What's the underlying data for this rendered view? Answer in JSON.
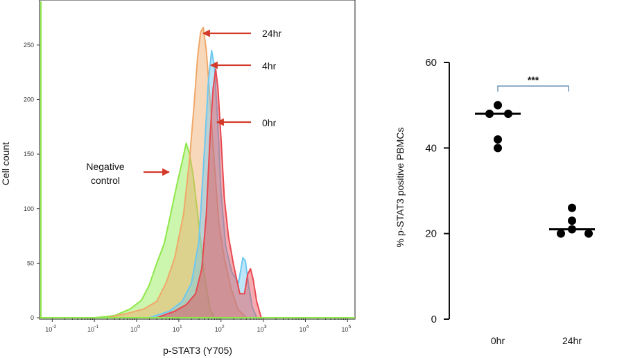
{
  "chart_data": [
    {
      "type": "area",
      "xlabel": "p-STAT3 (Y705)",
      "ylabel": "Cell count",
      "xscale": "log",
      "xlim": [
        0.005,
        150000
      ],
      "ylim": [
        0,
        290
      ],
      "x_ticks": [
        {
          "base": "10",
          "exp": "-2",
          "value": 0.01
        },
        {
          "base": "10",
          "exp": "-1",
          "value": 0.1
        },
        {
          "base": "10",
          "exp": "0",
          "value": 1
        },
        {
          "base": "10",
          "exp": "1",
          "value": 10
        },
        {
          "base": "10",
          "exp": "2",
          "value": 100
        },
        {
          "base": "10",
          "exp": "3",
          "value": 1000
        },
        {
          "base": "10",
          "exp": "4",
          "value": 10000
        },
        {
          "base": "10",
          "exp": "5",
          "value": 100000
        }
      ],
      "y_ticks": [
        "0",
        "50",
        "100",
        "150",
        "200",
        "250"
      ],
      "series": [
        {
          "name": "Negative control",
          "color": "#8ee84a",
          "points": [
            [
              0.1,
              0
            ],
            [
              0.3,
              2
            ],
            [
              0.7,
              8
            ],
            [
              1.3,
              16
            ],
            [
              2,
              30
            ],
            [
              3,
              50
            ],
            [
              4.5,
              68
            ],
            [
              6,
              90
            ],
            [
              9,
              122
            ],
            [
              12,
              143
            ],
            [
              15,
              160
            ],
            [
              18,
              150
            ],
            [
              22,
              130
            ],
            [
              30,
              85
            ],
            [
              40,
              40
            ],
            [
              55,
              8
            ],
            [
              70,
              0
            ]
          ]
        },
        {
          "name": "24hr",
          "color": "#f0a868",
          "points": [
            [
              0.2,
              0
            ],
            [
              0.6,
              4
            ],
            [
              1.5,
              8
            ],
            [
              3,
              15
            ],
            [
              5,
              32
            ],
            [
              8,
              55
            ],
            [
              13,
              95
            ],
            [
              18,
              145
            ],
            [
              23,
              195
            ],
            [
              28,
              240
            ],
            [
              33,
              262
            ],
            [
              38,
              266
            ],
            [
              45,
              245
            ],
            [
              55,
              200
            ],
            [
              70,
              140
            ],
            [
              90,
              85
            ],
            [
              120,
              55
            ],
            [
              170,
              28
            ],
            [
              250,
              8
            ],
            [
              400,
              0
            ]
          ]
        },
        {
          "name": "4hr",
          "color": "#6ec8f0",
          "points": [
            [
              2,
              0
            ],
            [
              6,
              6
            ],
            [
              12,
              15
            ],
            [
              20,
              32
            ],
            [
              30,
              70
            ],
            [
              40,
              150
            ],
            [
              50,
              215
            ],
            [
              60,
              245
            ],
            [
              70,
              230
            ],
            [
              85,
              175
            ],
            [
              100,
              115
            ],
            [
              130,
              65
            ],
            [
              180,
              42
            ],
            [
              260,
              32
            ],
            [
              330,
              55
            ],
            [
              380,
              52
            ],
            [
              450,
              30
            ],
            [
              550,
              10
            ],
            [
              700,
              0
            ]
          ]
        },
        {
          "name": "0hr",
          "color": "#e84850",
          "points": [
            [
              3,
              0
            ],
            [
              8,
              6
            ],
            [
              15,
              12
            ],
            [
              25,
              22
            ],
            [
              35,
              45
            ],
            [
              45,
              95
            ],
            [
              55,
              165
            ],
            [
              65,
              210
            ],
            [
              75,
              228
            ],
            [
              85,
              210
            ],
            [
              100,
              165
            ],
            [
              120,
              110
            ],
            [
              150,
              75
            ],
            [
              200,
              48
            ],
            [
              280,
              22
            ],
            [
              360,
              22
            ],
            [
              430,
              40
            ],
            [
              500,
              45
            ],
            [
              580,
              35
            ],
            [
              700,
              15
            ],
            [
              900,
              0
            ]
          ]
        }
      ]
    },
    {
      "type": "scatter",
      "ylabel": "% p-STAT3 positive PBMCs",
      "categories": [
        "0hr",
        "24hr"
      ],
      "ylim": [
        0,
        60
      ],
      "y_ticks": [
        "0",
        "20",
        "40",
        "60"
      ],
      "series": [
        {
          "category": "0hr",
          "values": [
            50,
            48,
            48,
            42,
            40
          ],
          "median": 48
        },
        {
          "category": "24hr",
          "values": [
            26,
            23,
            21,
            20,
            20
          ],
          "median": 21
        }
      ],
      "significance": "***"
    }
  ],
  "annotations": [
    {
      "text": "24hr",
      "arrow_color": "#d43a2a"
    },
    {
      "text": "4hr",
      "arrow_color": "#d43a2a"
    },
    {
      "text": "0hr",
      "arrow_color": "#d43a2a"
    },
    {
      "text": "Negative control",
      "line1": "Negative",
      "line2": "control",
      "arrow_color": "#d43a2a"
    }
  ]
}
